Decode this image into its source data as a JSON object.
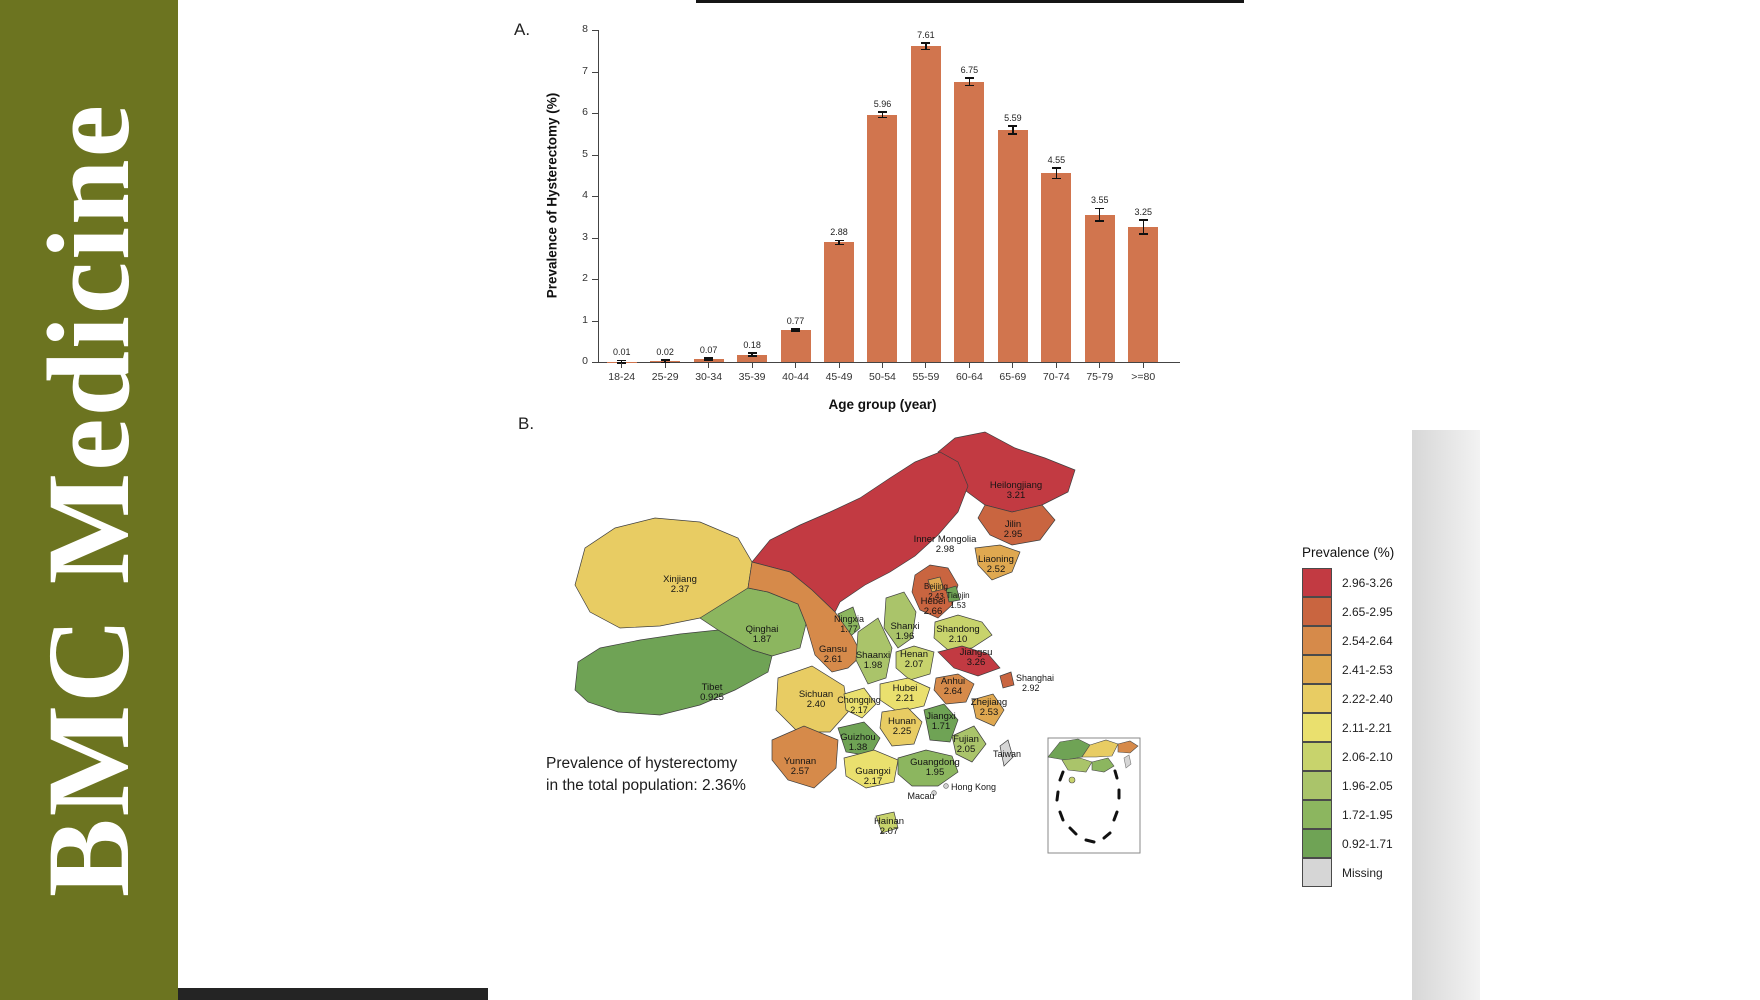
{
  "banner": {
    "journal": "BMC Medicine",
    "bg_color": "#6c7420"
  },
  "panels": {
    "a": "A.",
    "b": "B."
  },
  "chart_data": [
    {
      "type": "bar",
      "title": "",
      "xlabel": "Age group (year)",
      "ylabel": "Prevalence of Hysterectomy (%)",
      "ylim": [
        0,
        8
      ],
      "yticks": [
        0,
        1,
        2,
        3,
        4,
        5,
        6,
        7,
        8
      ],
      "grid": false,
      "bar_color": "#d1754e",
      "categories": [
        "18-24",
        "25-29",
        "30-34",
        "35-39",
        "40-44",
        "45-49",
        "50-54",
        "55-59",
        "60-64",
        "65-69",
        "70-74",
        "75-79",
        ">=80"
      ],
      "values": [
        0.01,
        0.02,
        0.07,
        0.18,
        0.77,
        2.88,
        5.96,
        7.61,
        6.75,
        5.59,
        4.55,
        3.55,
        3.25
      ],
      "labels": [
        "0.01",
        "0.02",
        "0.07",
        "0.18",
        "0.77",
        "2.88",
        "5.96",
        "7.61",
        "6.75",
        "5.59",
        "4.55",
        "3.55",
        "3.25"
      ],
      "errors": [
        0.01,
        0.01,
        0.02,
        0.03,
        0.03,
        0.05,
        0.07,
        0.08,
        0.09,
        0.1,
        0.13,
        0.15,
        0.17
      ]
    },
    {
      "type": "choropleth",
      "title": "",
      "legend_title": "Prevalence (%)",
      "legend_position": "right",
      "annotation": [
        "Prevalence of hysterectomy",
        "in the total population: 2.36%"
      ],
      "bands": [
        {
          "range": "2.96-3.26",
          "color": "#c23a42"
        },
        {
          "range": "2.65-2.95",
          "color": "#c96540"
        },
        {
          "range": "2.54-2.64",
          "color": "#d68a4a"
        },
        {
          "range": "2.41-2.53",
          "color": "#dfa850"
        },
        {
          "range": "2.22-2.40",
          "color": "#e8cc63"
        },
        {
          "range": "2.11-2.21",
          "color": "#eae06e"
        },
        {
          "range": "2.06-2.10",
          "color": "#c8d36c"
        },
        {
          "range": "1.96-2.05",
          "color": "#aac46a"
        },
        {
          "range": "1.72-1.95",
          "color": "#8cb65f"
        },
        {
          "range": "0.92-1.71",
          "color": "#6fa355"
        },
        {
          "range": "Missing",
          "color": "#d6d6d6"
        }
      ],
      "regions": [
        {
          "name": "Heilongjiang",
          "value": "3.21",
          "band": "2.96-3.26"
        },
        {
          "name": "Jilin",
          "value": "2.95",
          "band": "2.65-2.95"
        },
        {
          "name": "Liaoning",
          "value": "2.52",
          "band": "2.41-2.53"
        },
        {
          "name": "Inner Mongolia",
          "value": "2.98",
          "band": "2.96-3.26"
        },
        {
          "name": "Hebei",
          "value": "2.66",
          "band": "2.65-2.95"
        },
        {
          "name": "Beijing",
          "value": "2.43",
          "band": "2.41-2.53"
        },
        {
          "name": "Tianjin",
          "value": "1.53",
          "band": "0.92-1.71"
        },
        {
          "name": "Shanxi",
          "value": "1.96",
          "band": "1.96-2.05"
        },
        {
          "name": "Shandong",
          "value": "2.10",
          "band": "2.06-2.10"
        },
        {
          "name": "Xinjiang",
          "value": "2.37",
          "band": "2.22-2.40"
        },
        {
          "name": "Ningxia",
          "value": "1.77",
          "band": "1.72-1.95"
        },
        {
          "name": "Qinghai",
          "value": "1.87",
          "band": "1.72-1.95"
        },
        {
          "name": "Gansu",
          "value": "2.61",
          "band": "2.54-2.64"
        },
        {
          "name": "Shaanxi",
          "value": "1.98",
          "band": "1.96-2.05"
        },
        {
          "name": "Henan",
          "value": "2.07",
          "band": "2.06-2.10"
        },
        {
          "name": "Jiangsu",
          "value": "3.26",
          "band": "2.96-3.26"
        },
        {
          "name": "Shanghai",
          "value": "2.92",
          "band": "2.65-2.95"
        },
        {
          "name": "Anhui",
          "value": "2.64",
          "band": "2.54-2.64"
        },
        {
          "name": "Hubei",
          "value": "2.21",
          "band": "2.11-2.21"
        },
        {
          "name": "Zhejiang",
          "value": "2.53",
          "band": "2.41-2.53"
        },
        {
          "name": "Tibet",
          "value": "0.925",
          "band": "0.92-1.71"
        },
        {
          "name": "Sichuan",
          "value": "2.40",
          "band": "2.22-2.40"
        },
        {
          "name": "Chongqing",
          "value": "2.17",
          "band": "2.11-2.21"
        },
        {
          "name": "Hunan",
          "value": "2.25",
          "band": "2.22-2.40"
        },
        {
          "name": "Jiangxi",
          "value": "1.71",
          "band": "0.92-1.71"
        },
        {
          "name": "Guizhou",
          "value": "1.38",
          "band": "0.92-1.71"
        },
        {
          "name": "Fujian",
          "value": "2.05",
          "band": "1.96-2.05"
        },
        {
          "name": "Yunnan",
          "value": "2.57",
          "band": "2.54-2.64"
        },
        {
          "name": "Guangxi",
          "value": "2.17",
          "band": "2.11-2.21"
        },
        {
          "name": "Guangdong",
          "value": "1.95",
          "band": "1.72-1.95"
        },
        {
          "name": "Hainan",
          "value": "2.07",
          "band": "2.06-2.10"
        },
        {
          "name": "Taiwan",
          "value": "",
          "band": "Missing"
        },
        {
          "name": "Hong Kong",
          "value": "",
          "band": "Missing"
        },
        {
          "name": "Macau",
          "value": "",
          "band": "Missing"
        }
      ]
    }
  ]
}
